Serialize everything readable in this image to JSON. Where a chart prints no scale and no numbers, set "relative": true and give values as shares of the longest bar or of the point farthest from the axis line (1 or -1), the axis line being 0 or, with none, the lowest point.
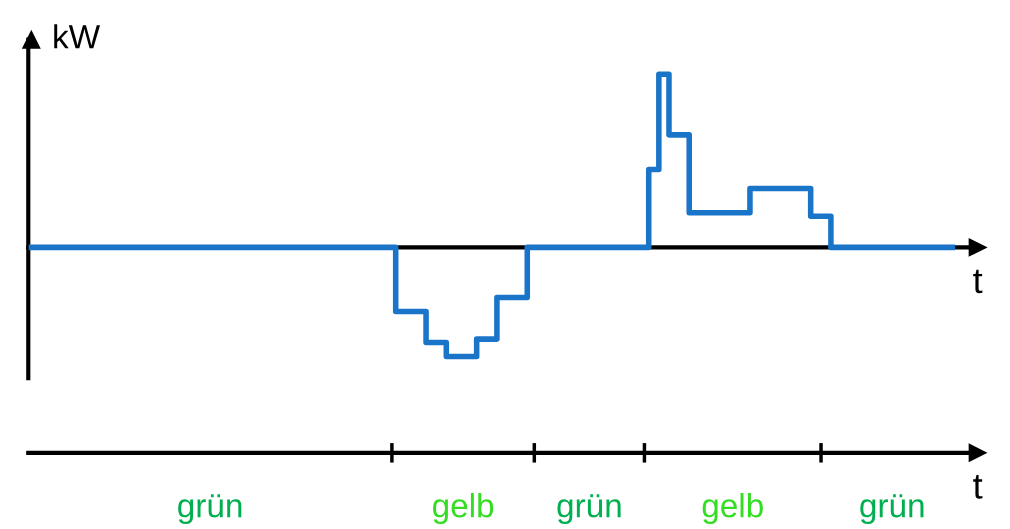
{
  "chart_data": [
    {
      "type": "step",
      "relative": true,
      "xlabel": "t",
      "ylabel": "kW",
      "categories": [
        null,
        null,
        null,
        null,
        null,
        null,
        null,
        null,
        null,
        null,
        null,
        null,
        null,
        null,
        null,
        null,
        null,
        null,
        null,
        null,
        null,
        null,
        null,
        null,
        null,
        null,
        null,
        null,
        null,
        null,
        null,
        null,
        null,
        null,
        null,
        null,
        null,
        null,
        null,
        null,
        null,
        null,
        null,
        null,
        null,
        null,
        null,
        null,
        null,
        null,
        null,
        null,
        null,
        null,
        null,
        null,
        null,
        null,
        null,
        null,
        null,
        null,
        null,
        null,
        null,
        null,
        null,
        null,
        null,
        null,
        null,
        null,
        null,
        null,
        null,
        null,
        null,
        null,
        null,
        null,
        null,
        null,
        null,
        null,
        null,
        null,
        null,
        null,
        null,
        null,
        null,
        null
      ],
      "series": [
        {
          "color": "#1a75c9",
          "values": [
            0,
            0,
            0,
            0,
            0,
            0,
            0,
            0,
            0,
            0,
            0,
            0,
            0,
            0,
            0,
            0,
            0,
            0,
            0,
            0,
            0,
            0,
            0,
            0,
            0,
            0,
            0,
            0,
            0,
            0,
            0,
            0,
            0,
            0,
            0,
            0,
            -0.37,
            -0.37,
            -0.37,
            -0.55,
            -0.55,
            -0.63,
            -0.63,
            -0.63,
            -0.53,
            -0.53,
            -0.29,
            -0.29,
            -0.29,
            0,
            0,
            0,
            0,
            0,
            0,
            0,
            0,
            0,
            0,
            0,
            0,
            0.45,
            1,
            0.65,
            0.65,
            0.2,
            0.2,
            0.2,
            0.2,
            0.2,
            0.2,
            0.34,
            0.34,
            0.34,
            0.34,
            0.34,
            0.34,
            0.18,
            0.18,
            0,
            0,
            0,
            0,
            0,
            0,
            0,
            0,
            0,
            0,
            0,
            0,
            0
          ]
        }
      ]
    },
    {
      "type": "other",
      "xlabel": "t",
      "annotations": [
        "grün",
        "gelb",
        "grün",
        "gelb",
        "grün"
      ]
    }
  ]
}
